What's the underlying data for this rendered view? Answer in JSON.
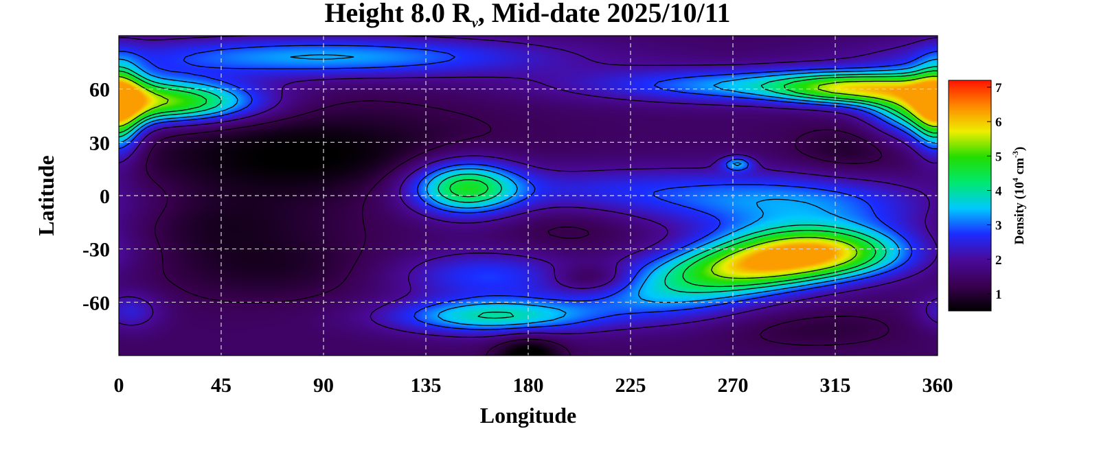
{
  "chart_data": {
    "type": "heatmap",
    "title": {
      "prefix": "Height 8.0 R",
      "subscript": "ν",
      "suffix": ", Mid-date 2025/10/11"
    },
    "xlabel": "Longitude",
    "ylabel": "Latitude",
    "xlim": [
      0,
      360
    ],
    "ylim": [
      -90,
      90
    ],
    "x_ticks": [
      0,
      45,
      90,
      135,
      180,
      225,
      270,
      315,
      360
    ],
    "y_ticks": [
      60,
      30,
      0,
      -30,
      -60
    ],
    "x_tick_labels": [
      "0",
      "45",
      "90",
      "135",
      "180",
      "225",
      "270",
      "315",
      "360"
    ],
    "y_tick_labels": [
      "60",
      "30",
      "0",
      "-30",
      "-60"
    ],
    "grid": true,
    "colorbar": {
      "label": "Density (10",
      "label_sup1": "4",
      "label_mid": " cm",
      "label_sup2": "-3",
      "label_end": ")",
      "range": [
        0.5,
        7.2
      ],
      "ticks": [
        1,
        2,
        3,
        4,
        5,
        6,
        7
      ],
      "tick_labels": [
        "1",
        "2",
        "3",
        "4",
        "5",
        "6",
        "7"
      ],
      "placement": "right",
      "colors": [
        "#000000",
        "#3a0050",
        "#4a0a9a",
        "#1c2cff",
        "#00c8ff",
        "#00e870",
        "#22dd00",
        "#eeee00",
        "#ff8800",
        "#ff1400"
      ]
    },
    "contour_levels": [
      1.25,
      2.0,
      2.8,
      3.3,
      3.9,
      4.4,
      5.3
    ],
    "background_level": 1.45,
    "features": [
      {
        "lon": 22,
        "lat": 52,
        "level": 3.6,
        "sx": 28,
        "sy": 8
      },
      {
        "lon": 0,
        "lat": 48,
        "level": 2.6,
        "sx": 7,
        "sy": 18
      },
      {
        "lon": 90,
        "lat": 78,
        "level": 1.9,
        "sx": 70,
        "sy": 8
      },
      {
        "lon": 80,
        "lat": 22,
        "level": -1.0,
        "sx": 55,
        "sy": 20
      },
      {
        "lon": 40,
        "lat": -15,
        "level": -0.5,
        "sx": 30,
        "sy": 12
      },
      {
        "lon": 65,
        "lat": -40,
        "level": -0.6,
        "sx": 35,
        "sy": 14
      },
      {
        "lon": 152,
        "lat": 5,
        "level": 3.0,
        "sx": 17,
        "sy": 11
      },
      {
        "lon": 210,
        "lat": 3,
        "level": 1.0,
        "sx": 55,
        "sy": 10
      },
      {
        "lon": 290,
        "lat": 62,
        "level": 2.0,
        "sx": 60,
        "sy": 7
      },
      {
        "lon": 322,
        "lat": 60,
        "level": 2.4,
        "sx": 22,
        "sy": 6
      },
      {
        "lon": 350,
        "lat": 48,
        "level": 1.8,
        "sx": 14,
        "sy": 14
      },
      {
        "lon": 272,
        "lat": 18,
        "level": 1.6,
        "sx": 5,
        "sy": 3
      },
      {
        "lon": 300,
        "lat": -5,
        "level": 1.6,
        "sx": 45,
        "sy": 12
      },
      {
        "lon": 305,
        "lat": -32,
        "level": 4.6,
        "sx": 28,
        "sy": 10
      },
      {
        "lon": 272,
        "lat": -42,
        "level": 2.6,
        "sx": 25,
        "sy": 9
      },
      {
        "lon": 240,
        "lat": -55,
        "level": 1.8,
        "sx": 30,
        "sy": 11
      },
      {
        "lon": 165,
        "lat": -68,
        "level": 2.4,
        "sx": 32,
        "sy": 7
      },
      {
        "lon": 160,
        "lat": -45,
        "level": 1.3,
        "sx": 28,
        "sy": 10
      },
      {
        "lon": 208,
        "lat": -47,
        "level": -1.1,
        "sx": 13,
        "sy": 6
      },
      {
        "lon": 200,
        "lat": -18,
        "level": -0.4,
        "sx": 22,
        "sy": 10
      },
      {
        "lon": 320,
        "lat": 25,
        "level": -0.5,
        "sx": 18,
        "sy": 10
      },
      {
        "lon": 305,
        "lat": -75,
        "level": -0.4,
        "sx": 30,
        "sy": 8
      },
      {
        "lon": 180,
        "lat": -90,
        "level": -1.2,
        "sx": 10,
        "sy": 8
      },
      {
        "lon": 5,
        "lat": -65,
        "level": 1.0,
        "sx": 10,
        "sy": 8
      }
    ]
  }
}
